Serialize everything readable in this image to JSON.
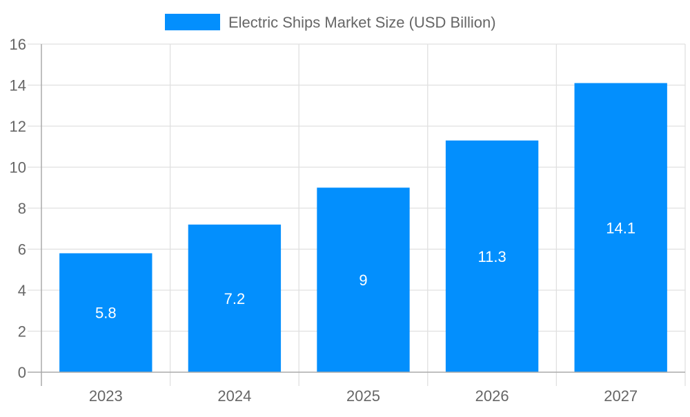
{
  "chart_data": {
    "type": "bar",
    "title": "",
    "xlabel": "",
    "ylabel": "",
    "categories": [
      "2023",
      "2024",
      "2025",
      "2026",
      "2027"
    ],
    "series": [
      {
        "name": "Electric Ships Market Size (USD Billion)",
        "values": [
          5.8,
          7.2,
          9,
          11.3,
          14.1
        ],
        "color": "#038ffd"
      }
    ],
    "ylim": [
      0,
      16
    ],
    "yticks": [
      0,
      2,
      4,
      6,
      8,
      10,
      12,
      14,
      16
    ],
    "grid": true,
    "legend": "top",
    "data_labels": [
      "5.8",
      "7.2",
      "9",
      "11.3",
      "14.1"
    ]
  }
}
